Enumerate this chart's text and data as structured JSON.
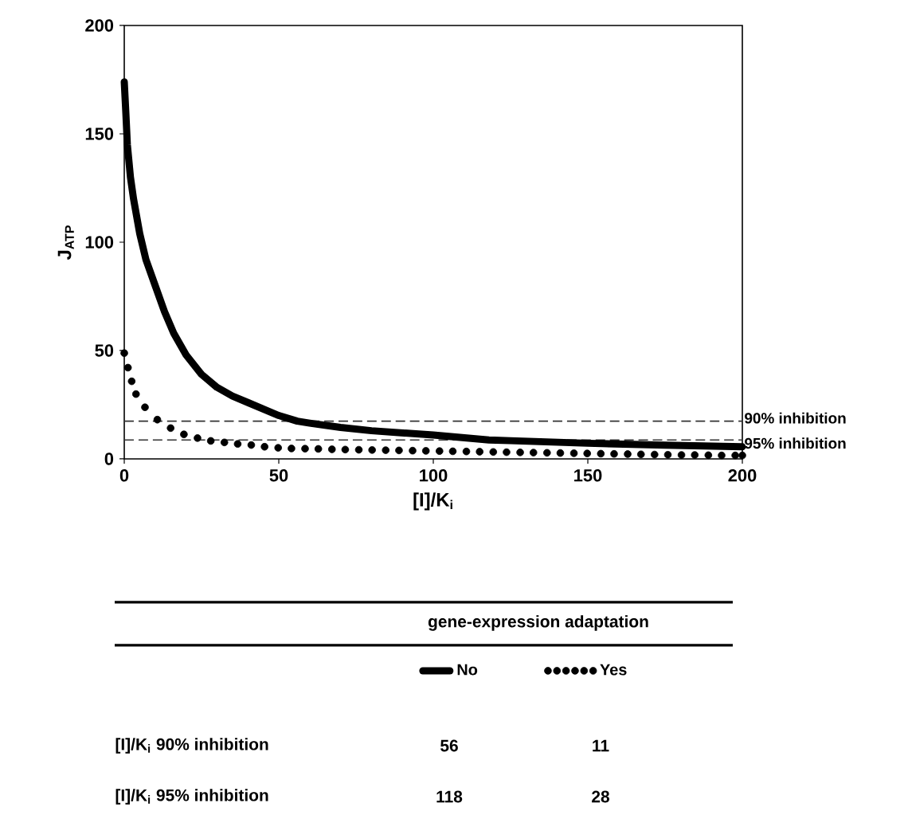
{
  "chart_data": {
    "type": "line",
    "xlabel": "[I]/K$_{i}$",
    "ylabel": "J$_{ATP}$",
    "xlim": [
      0,
      200
    ],
    "ylim": [
      0,
      200
    ],
    "xticks": [
      0,
      50,
      100,
      150,
      200
    ],
    "yticks": [
      0,
      50,
      100,
      150,
      200
    ],
    "legend": "bottom",
    "legend_title": "gene-expression adaptation",
    "series": [
      {
        "name": "No",
        "type": "line",
        "color": "#000000",
        "line_style": "solid",
        "x": [
          0,
          0.5,
          1,
          2,
          3,
          5,
          7,
          10,
          13,
          16,
          20,
          25,
          30,
          35,
          40,
          50,
          56,
          60,
          70,
          80,
          100,
          118,
          125,
          150,
          175,
          200
        ],
        "values": [
          174,
          160,
          145,
          130,
          120,
          104,
          92,
          80,
          68,
          58,
          48,
          39,
          33,
          29,
          26,
          20,
          17.4,
          16.5,
          14.5,
          13,
          11,
          8.7,
          8.4,
          7.2,
          6.3,
          5.6
        ]
      },
      {
        "name": "Yes",
        "type": "scatter",
        "color": "#000000",
        "marker": "circle",
        "x": [
          0,
          1.2,
          2.4,
          3.8,
          6.7,
          10.7,
          15,
          19.3,
          23.7,
          28,
          32.4,
          36.7,
          41.1,
          45.4,
          49.8,
          54.1,
          58.5,
          62.8,
          67.2,
          71.5,
          75.9,
          80.2,
          84.6,
          88.9,
          93.3,
          97.6,
          102,
          106.3,
          110.7,
          115,
          119.4,
          123.7,
          128.1,
          132.4,
          136.8,
          141.1,
          145.5,
          149.8,
          154.2,
          158.5,
          162.9,
          167.2,
          171.6,
          175.9,
          180.3,
          184.6,
          189,
          193.3,
          197.7,
          200
        ],
        "values": [
          48.8,
          42.1,
          35.8,
          29.9,
          23.8,
          18.1,
          14.2,
          11.3,
          9.6,
          8.3,
          7.6,
          6.9,
          6.4,
          5.6,
          5.1,
          4.8,
          4.7,
          4.6,
          4.4,
          4.3,
          4.2,
          4.1,
          4,
          3.9,
          3.8,
          3.7,
          3.6,
          3.5,
          3.4,
          3.3,
          3.2,
          3.1,
          3,
          2.9,
          2.8,
          2.7,
          2.6,
          2.5,
          2.4,
          2.3,
          2.2,
          2.1,
          2,
          1.9,
          1.8,
          1.8,
          1.7,
          1.6,
          1.6,
          1.6
        ]
      }
    ],
    "ref_lines": [
      {
        "axis": "y",
        "value": 17.4,
        "label": "90% inhibition",
        "color": "#333333",
        "line_style": "dashed"
      },
      {
        "axis": "y",
        "value": 8.7,
        "label": "95% inhibition",
        "color": "#333333",
        "line_style": "dashed"
      }
    ],
    "annotations": [
      "[I]/K$_{i}$ 90% inhibition",
      "56",
      "11",
      "[I]/K$_{i}$ 95% inhibition",
      "118",
      "28"
    ]
  }
}
